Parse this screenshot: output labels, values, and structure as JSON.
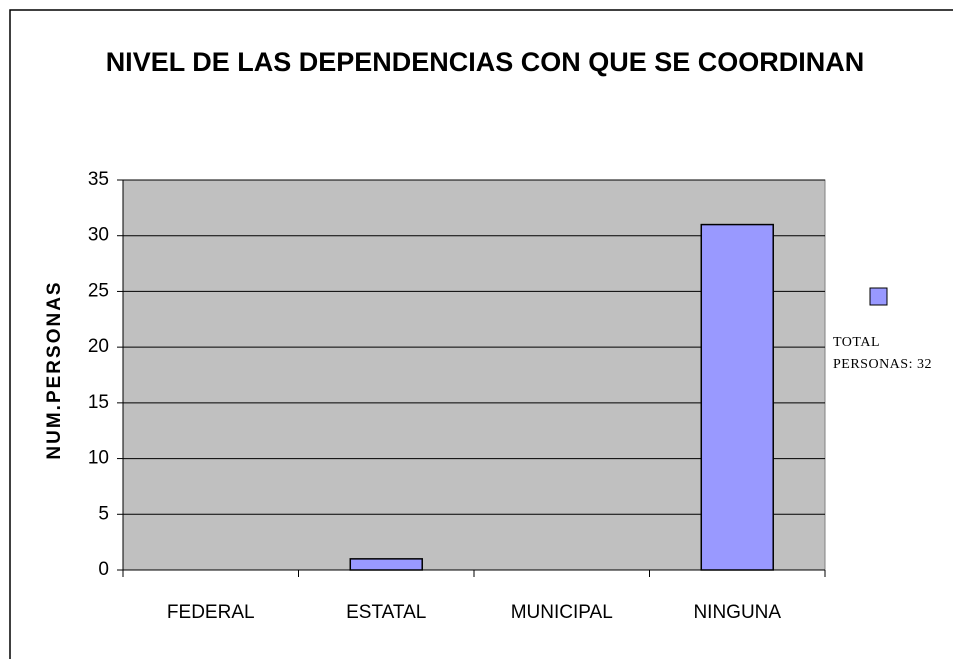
{
  "chart_data": {
    "type": "bar",
    "title": "NIVEL DE LAS DEPENDENCIAS CON QUE SE COORDINAN",
    "y_label": "NUM.PERSONAS",
    "categories": [
      "FEDERAL",
      "ESTATAL",
      "MUNICIPAL",
      "NINGUNA"
    ],
    "series": [
      {
        "name": "TOTAL PERSONAS: 32",
        "color": "#9999ff",
        "values": [
          0,
          1,
          0,
          31
        ]
      }
    ],
    "ylim": [
      0,
      35
    ],
    "yticks": [
      0,
      5,
      10,
      15,
      20,
      25,
      30,
      35
    ],
    "grid": true,
    "plot_background": "#c0c0c0",
    "legend": "right"
  }
}
